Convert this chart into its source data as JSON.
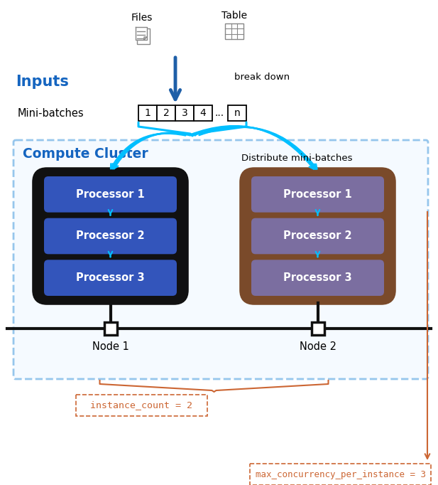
{
  "bg_color": "#ffffff",
  "inputs_label": "Inputs",
  "inputs_color": "#1565C0",
  "files_label": "Files",
  "table_label": "Table",
  "break_down_label": "break down",
  "mini_batches_label": "Mini-batches",
  "distribute_label": "Distribute mini-batches",
  "compute_cluster_label": "Compute Cluster",
  "compute_cluster_color": "#1565C0",
  "cluster_border": "#4499DD",
  "node1_label": "Node 1",
  "node2_label": "Node 2",
  "processor_labels": [
    "Processor 1",
    "Processor 2",
    "Processor 3"
  ],
  "node1_proc_color": "#3355BB",
  "node1_outer_color": "#111111",
  "node2_proc_color": "#7B6EA0",
  "node2_outer_color": "#7A4A2A",
  "node2_bg_color": "#C89870",
  "arrow_color": "#00BFFF",
  "arrow_dark": "#1E5FA8",
  "instance_count_label": "instance_count = 2",
  "max_concurrency_label": "max_concurrency_per_instance = 3",
  "annotation_color": "#CC6633"
}
